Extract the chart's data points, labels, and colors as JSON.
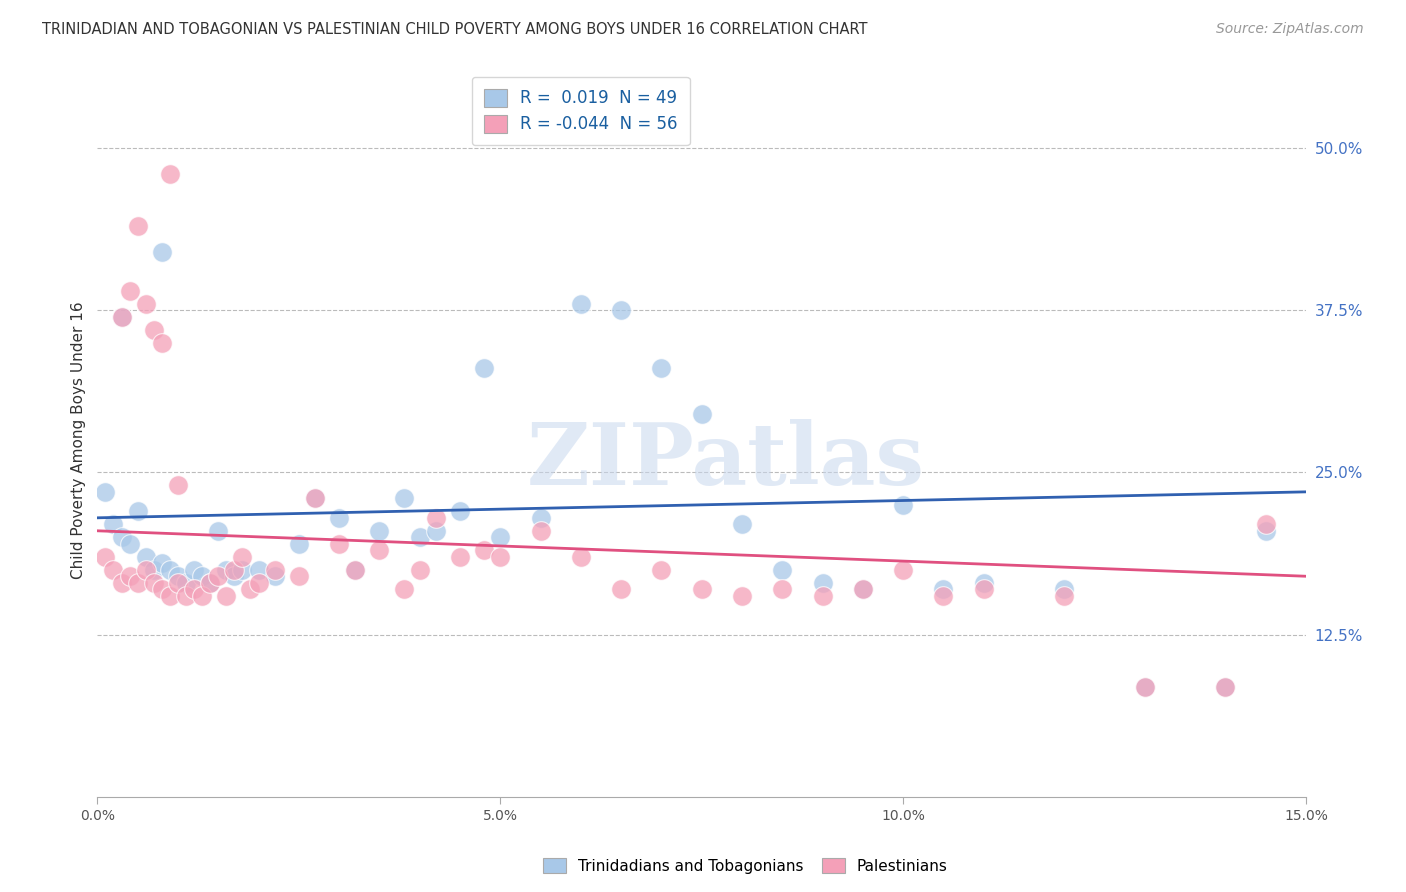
{
  "title": "TRINIDADIAN AND TOBAGONIAN VS PALESTINIAN CHILD POVERTY AMONG BOYS UNDER 16 CORRELATION CHART",
  "source": "Source: ZipAtlas.com",
  "ylabel": "Child Poverty Among Boys Under 16",
  "xlim": [
    0.0,
    0.15
  ],
  "ylim": [
    0.0,
    0.55
  ],
  "yticks": [
    0.125,
    0.25,
    0.375,
    0.5
  ],
  "ytick_labels": [
    "12.5%",
    "25.0%",
    "37.5%",
    "50.0%"
  ],
  "xticks": [
    0.0,
    0.05,
    0.1,
    0.15
  ],
  "xtick_labels": [
    "0.0%",
    "5.0%",
    "10.0%",
    "15.0%"
  ],
  "hlines": [
    0.125,
    0.25,
    0.375,
    0.5
  ],
  "blue_color": "#a8c8e8",
  "pink_color": "#f4a0b8",
  "blue_line_color": "#3060b0",
  "pink_line_color": "#e05080",
  "legend_R_blue": "0.019",
  "legend_N_blue": "49",
  "legend_R_pink": "-0.044",
  "legend_N_pink": "56",
  "legend_label_blue": "Trinidadians and Tobagonians",
  "legend_label_pink": "Palestinians",
  "watermark": "ZIPatlas",
  "blue_scatter_x": [
    0.001,
    0.002,
    0.003,
    0.004,
    0.005,
    0.006,
    0.007,
    0.008,
    0.009,
    0.01,
    0.011,
    0.012,
    0.013,
    0.014,
    0.015,
    0.016,
    0.017,
    0.018,
    0.02,
    0.022,
    0.025,
    0.027,
    0.03,
    0.032,
    0.035,
    0.038,
    0.04,
    0.042,
    0.045,
    0.048,
    0.05,
    0.055,
    0.06,
    0.065,
    0.07,
    0.075,
    0.08,
    0.085,
    0.09,
    0.095,
    0.1,
    0.105,
    0.11,
    0.12,
    0.13,
    0.14,
    0.145,
    0.003,
    0.008
  ],
  "blue_scatter_y": [
    0.235,
    0.21,
    0.2,
    0.195,
    0.22,
    0.185,
    0.175,
    0.18,
    0.175,
    0.17,
    0.165,
    0.175,
    0.17,
    0.165,
    0.205,
    0.175,
    0.17,
    0.175,
    0.175,
    0.17,
    0.195,
    0.23,
    0.215,
    0.175,
    0.205,
    0.23,
    0.2,
    0.205,
    0.22,
    0.33,
    0.2,
    0.215,
    0.38,
    0.375,
    0.33,
    0.295,
    0.21,
    0.175,
    0.165,
    0.16,
    0.225,
    0.16,
    0.165,
    0.16,
    0.085,
    0.085,
    0.205,
    0.37,
    0.42
  ],
  "pink_scatter_x": [
    0.001,
    0.002,
    0.003,
    0.004,
    0.005,
    0.006,
    0.007,
    0.008,
    0.009,
    0.01,
    0.011,
    0.012,
    0.013,
    0.014,
    0.015,
    0.016,
    0.017,
    0.018,
    0.019,
    0.02,
    0.022,
    0.025,
    0.027,
    0.03,
    0.032,
    0.035,
    0.038,
    0.04,
    0.042,
    0.045,
    0.048,
    0.05,
    0.055,
    0.06,
    0.065,
    0.07,
    0.075,
    0.08,
    0.085,
    0.09,
    0.095,
    0.1,
    0.105,
    0.11,
    0.12,
    0.13,
    0.14,
    0.145,
    0.003,
    0.004,
    0.005,
    0.006,
    0.007,
    0.008,
    0.009,
    0.01
  ],
  "pink_scatter_y": [
    0.185,
    0.175,
    0.165,
    0.17,
    0.165,
    0.175,
    0.165,
    0.16,
    0.155,
    0.165,
    0.155,
    0.16,
    0.155,
    0.165,
    0.17,
    0.155,
    0.175,
    0.185,
    0.16,
    0.165,
    0.175,
    0.17,
    0.23,
    0.195,
    0.175,
    0.19,
    0.16,
    0.175,
    0.215,
    0.185,
    0.19,
    0.185,
    0.205,
    0.185,
    0.16,
    0.175,
    0.16,
    0.155,
    0.16,
    0.155,
    0.16,
    0.175,
    0.155,
    0.16,
    0.155,
    0.085,
    0.085,
    0.21,
    0.37,
    0.39,
    0.44,
    0.38,
    0.36,
    0.35,
    0.48,
    0.24
  ]
}
